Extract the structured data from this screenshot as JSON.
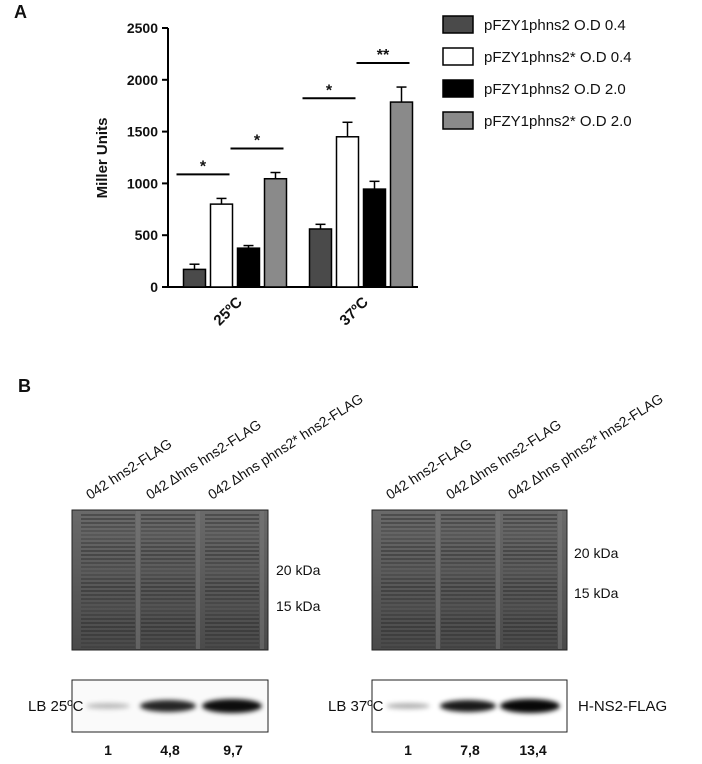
{
  "panel_a_label": "A",
  "chart_data": {
    "type": "bar",
    "y_label": "Miller Units",
    "categories": [
      "25ºC",
      "37ºC"
    ],
    "series": [
      {
        "name": "pFZY1phns2 O.D 0.4",
        "color": "#4a4a4a",
        "values": [
          170,
          560
        ],
        "errors": [
          50,
          45
        ]
      },
      {
        "name": "pFZY1phns2* O.D 0.4",
        "color": "#ffffff",
        "values": [
          800,
          1450
        ],
        "errors": [
          55,
          140
        ]
      },
      {
        "name": "pFZY1phns2 O.D 2.0",
        "color": "#000000",
        "values": [
          375,
          945
        ],
        "errors": [
          25,
          75
        ]
      },
      {
        "name": "pFZY1phns2* O.D 2.0",
        "color": "#8a8a8a",
        "values": [
          1045,
          1785
        ],
        "errors": [
          60,
          145
        ]
      }
    ],
    "annotations": [
      "*",
      "*",
      "*",
      "**"
    ],
    "ylim": [
      0,
      2500
    ],
    "yticks": [
      0,
      500,
      1000,
      1500,
      2000,
      2500
    ]
  },
  "panel_b": {
    "label": "B",
    "blots": [
      {
        "lanes": [
          "042 hns2-FLAG",
          "042 Δhns hns2-FLAG",
          "042 Δhns phns2* hns2-FLAG"
        ],
        "markers": [
          "20 kDa",
          "15 kDa"
        ],
        "condition": "LB 25ºC",
        "quantities": [
          "1",
          "4,8",
          "9,7"
        ]
      },
      {
        "lanes": [
          "042 hns2-FLAG",
          "042 Δhns hns2-FLAG",
          "042  Δhns phns2* hns2-FLAG"
        ],
        "markers": [
          "20 kDa",
          "15 kDa"
        ],
        "condition": "LB 37ºC",
        "quantities": [
          "1",
          "7,8",
          "13,4"
        ]
      }
    ],
    "protein": "H-NS2-FLAG"
  }
}
